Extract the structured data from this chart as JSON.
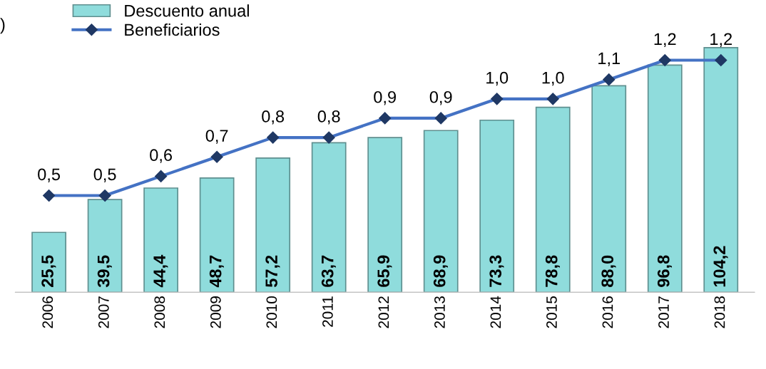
{
  "chart_data": {
    "type": "bar",
    "categories": [
      "2006",
      "2007",
      "2008",
      "2009",
      "2010",
      "2011",
      "2012",
      "2013",
      "2014",
      "2015",
      "2016",
      "2017",
      "2018"
    ],
    "series": [
      {
        "name": "Descuento anual",
        "color": "#8fdcdc",
        "values": [
          25.5,
          39.5,
          44.4,
          48.7,
          57.2,
          63.7,
          65.9,
          68.9,
          73.3,
          78.8,
          88.0,
          96.8,
          104.2
        ],
        "value_labels": [
          "25,5",
          "39,5",
          "44,4",
          "48,7",
          "57,2",
          "63,7",
          "65,9",
          "68,9",
          "73,3",
          "78,8",
          "88,0",
          "96,8",
          "104,2"
        ]
      },
      {
        "name": "Beneficiarios",
        "type": "line",
        "axis": "y2",
        "color": "#4472c4",
        "values": [
          0.5,
          0.5,
          0.6,
          0.7,
          0.8,
          0.8,
          0.9,
          0.9,
          1.0,
          1.0,
          1.1,
          1.2,
          1.2
        ],
        "value_labels": [
          "0,5",
          "0,5",
          "0,6",
          "0,7",
          "0,8",
          "0,8",
          "0,9",
          "0,9",
          "1,0",
          "1,0",
          "1,1",
          "1,2",
          "1,2"
        ]
      }
    ],
    "tick_labels": "x",
    "legend": "top left",
    "marker": "diamond",
    "line_style": "solid",
    "annotations": [
      ")"
    ]
  }
}
